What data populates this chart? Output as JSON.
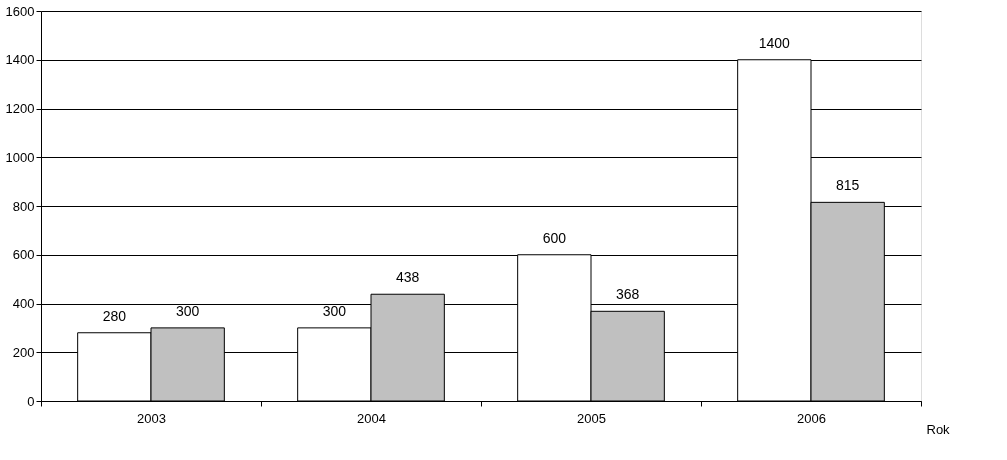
{
  "chart_data": {
    "type": "bar",
    "xlabel": "Rok",
    "categories": [
      "2003",
      "2004",
      "2005",
      "2006"
    ],
    "series": [
      {
        "color": "#ffffff",
        "values": [
          280,
          300,
          600,
          1400
        ]
      },
      {
        "color": "#c0c0c0",
        "values": [
          300,
          438,
          368,
          815
        ]
      }
    ],
    "ylim": [
      0,
      1600
    ],
    "yticks": [
      0,
      200,
      400,
      600,
      800,
      1000,
      1200,
      1400,
      1600
    ],
    "grid": "y",
    "data_labels": true
  }
}
